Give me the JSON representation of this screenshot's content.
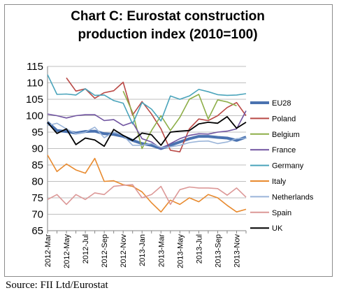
{
  "source": "Source: FII Ltd/Eurostat",
  "chart_data": {
    "type": "line",
    "title": "Chart C: Eurostat construction production index (2010=100)",
    "title_lines": [
      "Chart C: Eurostat construction",
      "production index (2010=100)"
    ],
    "xlabel": "",
    "ylabel": "",
    "ylim": [
      65,
      115
    ],
    "yticks": [
      65,
      70,
      75,
      80,
      85,
      90,
      95,
      100,
      105,
      110,
      115
    ],
    "grid": true,
    "legend_position": "right",
    "categories": [
      "2012-Mar",
      "2012-Apr",
      "2012-May",
      "2012-Jun",
      "2012-Jul",
      "2012-Aug",
      "2012-Sep",
      "2012-Oct",
      "2012-Nov",
      "2012-Dec",
      "2013-Jan",
      "2013-Feb",
      "2013-Mar",
      "2013-Apr",
      "2013-May",
      "2013-Jun",
      "2013-Jul",
      "2013-Aug",
      "2013-Sep",
      "2013-Oct",
      "2013-Nov",
      "2013-Dec"
    ],
    "tick_labels": [
      "2012-Mar",
      "2012-May",
      "2012-Jul",
      "2012-Sep",
      "2012-Nov",
      "2013-Jan",
      "2013-Mar",
      "2013-May",
      "2013-Jul",
      "2013-Sep",
      "2013-Nov"
    ],
    "series": [
      {
        "name": "EU28",
        "color": "#4a72b0",
        "width": 4,
        "values": [
          98,
          95.5,
          95.2,
          94.7,
          95.2,
          95.3,
          94.5,
          94.3,
          93.7,
          92.5,
          91.5,
          91,
          90,
          91,
          92,
          93,
          93.7,
          93.7,
          93.4,
          93.2,
          92.5,
          93.5
        ]
      },
      {
        "name": "Poland",
        "color": "#b94946",
        "width": 1.6,
        "values": [
          null,
          null,
          111.5,
          107.5,
          108.2,
          105.3,
          107,
          107.6,
          110.2,
          100.2,
          104.3,
          100.5,
          96,
          89.5,
          89,
          96,
          99,
          98.5,
          100,
          102.5,
          104,
          100
        ]
      },
      {
        "name": "Belgium",
        "color": "#8dae48",
        "width": 1.6,
        "values": [
          null,
          null,
          null,
          null,
          null,
          null,
          null,
          null,
          107.5,
          101,
          90,
          95.5,
          100,
          95.5,
          99.5,
          105,
          106.5,
          99,
          104.8,
          104.2,
          103,
          null
        ]
      },
      {
        "name": "France",
        "color": "#7054a0",
        "width": 1.6,
        "values": [
          100.5,
          100,
          99.3,
          100,
          100.3,
          100.3,
          98.5,
          98.8,
          97,
          98,
          93,
          92,
          90,
          91.5,
          93,
          94,
          94.5,
          94.4,
          95,
          95.3,
          96,
          101.5
        ]
      },
      {
        "name": "Germany",
        "color": "#4aa4bb",
        "width": 1.6,
        "values": [
          112.5,
          106.5,
          106.6,
          106.3,
          108.2,
          106.2,
          106.3,
          104.6,
          103.8,
          97.5,
          104,
          102,
          98.4,
          106,
          105,
          106,
          108,
          107.3,
          106.4,
          106.2,
          106.3,
          106.7
        ]
      },
      {
        "name": "Italy",
        "color": "#e88a2e",
        "width": 1.6,
        "values": [
          88,
          83,
          85.3,
          83.5,
          82.5,
          87,
          80,
          80.2,
          79,
          78.5,
          76.8,
          73.5,
          70.7,
          74.3,
          73,
          75,
          73.8,
          76,
          75,
          72.7,
          70.7,
          71.5
        ]
      },
      {
        "name": "Netherlands",
        "color": "#9bb5d9",
        "width": 1.6,
        "values": [
          97,
          97.7,
          96,
          94.5,
          95,
          96.5,
          93.3,
          95,
          94,
          91,
          91,
          91.5,
          90.3,
          90.5,
          91,
          91.8,
          92.2,
          92.3,
          91.5,
          92,
          93,
          93.2
        ]
      },
      {
        "name": "Spain",
        "color": "#dc9897",
        "width": 1.6,
        "values": [
          74.5,
          76,
          73,
          76,
          74.5,
          76.5,
          76,
          78.5,
          78.8,
          79,
          75,
          76,
          78.5,
          73,
          77.5,
          78.3,
          78,
          78,
          77.8,
          75.8,
          78,
          75.2
        ]
      },
      {
        "name": "UK",
        "color": "#000000",
        "width": 1.8,
        "values": [
          98,
          94.6,
          96,
          91.2,
          93.2,
          92.6,
          90.7,
          95.8,
          94,
          92.5,
          94.7,
          94.2,
          91,
          95,
          95.3,
          95.5,
          97.5,
          98,
          97.7,
          99.7,
          96.2,
          98
        ]
      }
    ]
  }
}
